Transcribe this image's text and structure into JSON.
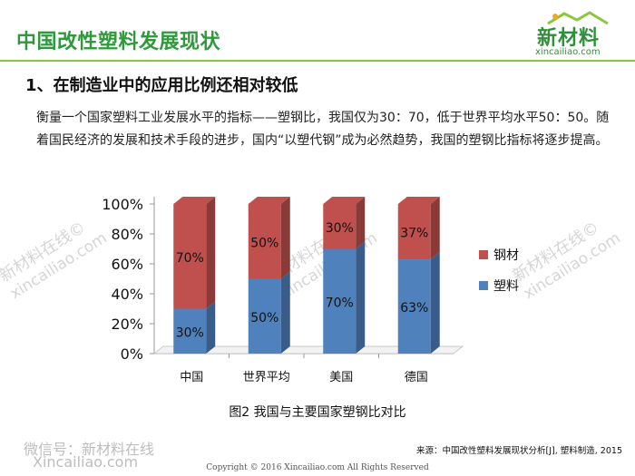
{
  "header": {
    "title": "中国改性塑料发展现状",
    "logo_text": "新材料",
    "logo_url": "xincailiao.com"
  },
  "section": {
    "heading": "1、在制造业中的应用比例还相对较低",
    "paragraph": "衡量一个国家塑料工业发展水平的指标——塑钢比，我国仅为30：70，低于世界平均水平50：50。随着国民经济的发展和技术手段的进步，国内“以塑代钢”成为必然趋势，我国的塑钢比指标将逐步提高。"
  },
  "watermarks": {
    "line1": "新材料在线©",
    "line2": "xincailiao.com"
  },
  "chart_data": {
    "type": "bar",
    "stacked": true,
    "categories": [
      "中国",
      "世界平均",
      "美国",
      "德国"
    ],
    "series": [
      {
        "name": "塑料",
        "values": [
          30,
          50,
          70,
          63
        ],
        "labels": [
          "30%",
          "50%",
          "70%",
          "63%"
        ],
        "color": "#4f81bd"
      },
      {
        "name": "钢材",
        "values": [
          70,
          50,
          30,
          37
        ],
        "labels": [
          "70%",
          "50%",
          "30%",
          "37%"
        ],
        "color": "#c0504d"
      }
    ],
    "y_ticks": [
      "0%",
      "20%",
      "40%",
      "60%",
      "80%",
      "100%"
    ],
    "ylim": [
      0,
      100
    ],
    "legend_position": "right",
    "title": ""
  },
  "caption": "图2 我国与主要国家塑钢比对比",
  "footer": {
    "source": "来源：中国改性塑料发展现状分析[J], 塑料制造, 2015",
    "wechat": "微信号：新材料在线",
    "wechat_site": "Xincailiao.com",
    "copyright": "Copyright © 2016   Xincailiao.com   All Rights Reserved"
  }
}
